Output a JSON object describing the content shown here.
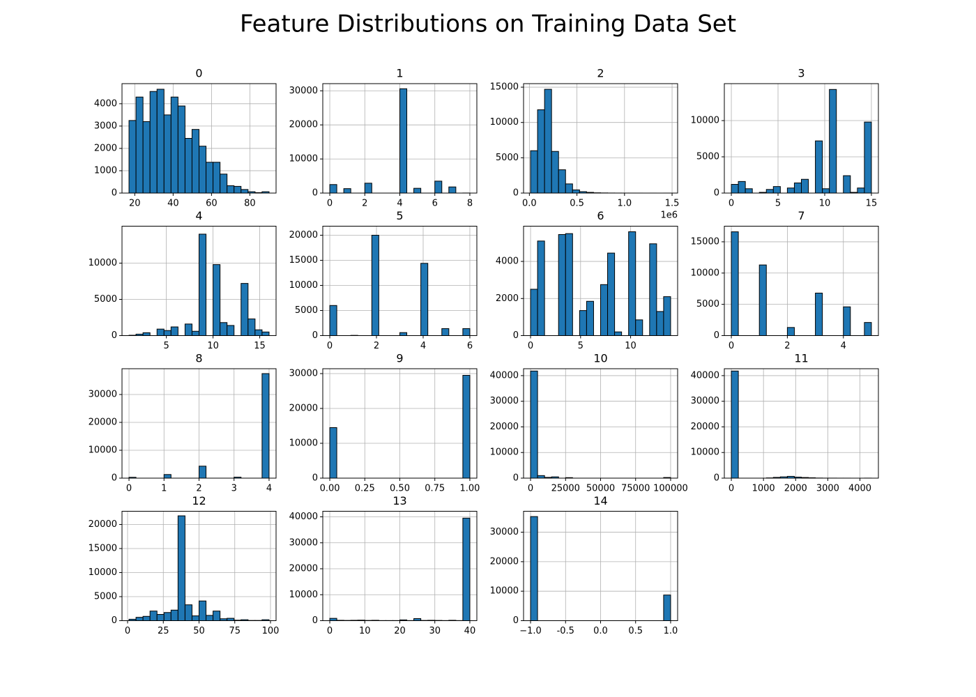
{
  "title": "Feature Distributions on Training Data Set",
  "chart_data": [
    {
      "type": "histogram",
      "title": "0",
      "color": "#1f77b4",
      "grid": true,
      "bins": [
        17,
        20.65,
        24.3,
        27.95,
        31.6,
        35.25,
        38.9,
        42.55,
        46.2,
        49.85,
        53.5,
        57.15,
        60.8,
        64.45,
        68.1,
        71.75,
        75.4,
        79.05,
        82.7,
        86.35,
        90
      ],
      "counts": [
        3250,
        4300,
        3200,
        4550,
        4650,
        3500,
        4300,
        3900,
        2450,
        2850,
        2100,
        1380,
        1380,
        850,
        330,
        300,
        160,
        60,
        20,
        60
      ],
      "xlim": [
        13.35,
        93.65
      ],
      "xticks": [
        20,
        40,
        60,
        80
      ],
      "ylim": [
        0,
        4900
      ],
      "yticks": [
        0,
        1000,
        2000,
        3000,
        4000
      ]
    },
    {
      "type": "histogram",
      "title": "1",
      "color": "#1f77b4",
      "grid": true,
      "bins": [
        0,
        0.4,
        0.8,
        1.2,
        1.6,
        2,
        2.4,
        2.8,
        3.2,
        3.6,
        4,
        4.4,
        4.8,
        5.2,
        5.6,
        6,
        6.4,
        6.8,
        7.2,
        7.6,
        8
      ],
      "counts": [
        2500,
        0,
        1300,
        0,
        0,
        2900,
        0,
        0,
        0,
        0,
        30600,
        0,
        1400,
        0,
        0,
        3500,
        0,
        1800,
        0,
        20
      ],
      "xlim": [
        -0.4,
        8.4
      ],
      "xticks": [
        0,
        2,
        4,
        6,
        8
      ],
      "ylim": [
        0,
        32100
      ],
      "yticks": [
        0,
        10000,
        20000,
        30000
      ]
    },
    {
      "type": "histogram",
      "title": "2",
      "color": "#1f77b4",
      "grid": true,
      "offset_label": "1e6",
      "bins": [
        0.0123,
        0.0859,
        0.1595,
        0.2331,
        0.3067,
        0.3803,
        0.4539,
        0.5275,
        0.6011,
        0.6747,
        0.7483,
        0.8219,
        0.8955,
        0.9691,
        1.0427,
        1.1163,
        1.1899,
        1.2635,
        1.3371,
        1.4107,
        1.4843
      ],
      "counts": [
        6000,
        11800,
        14700,
        5900,
        3300,
        1300,
        450,
        200,
        100,
        40,
        20,
        10,
        5,
        3,
        2,
        1,
        0,
        1,
        0,
        1
      ],
      "xlim": [
        -0.0613,
        1.5583
      ],
      "xticks": [
        {
          "value": 0,
          "label": "0.0"
        },
        0.5,
        {
          "value": 1,
          "label": "1.0"
        },
        1.5
      ],
      "ylim": [
        0,
        15500
      ],
      "yticks": [
        0,
        5000,
        10000,
        15000
      ]
    },
    {
      "type": "histogram",
      "title": "3",
      "color": "#1f77b4",
      "grid": true,
      "bins": [
        0,
        0.75,
        1.5,
        2.25,
        3,
        3.75,
        4.5,
        5.25,
        6,
        6.75,
        7.5,
        8.25,
        9,
        9.75,
        10.5,
        11.25,
        12,
        12.75,
        13.5,
        14.25,
        15
      ],
      "counts": [
        1200,
        1600,
        600,
        0,
        100,
        500,
        900,
        0,
        700,
        1400,
        1900,
        0,
        7200,
        600,
        14300,
        0,
        2400,
        100,
        700,
        9800
      ],
      "xlim": [
        -0.75,
        15.75
      ],
      "xticks": [
        0,
        5,
        10,
        15
      ],
      "ylim": [
        0,
        15100
      ],
      "yticks": [
        0,
        5000,
        10000
      ]
    },
    {
      "type": "histogram",
      "title": "4",
      "color": "#1f77b4",
      "grid": true,
      "bins": [
        1,
        1.75,
        2.5,
        3.25,
        4,
        4.75,
        5.5,
        6.25,
        7,
        7.75,
        8.5,
        9.25,
        10,
        10.75,
        11.5,
        12.25,
        13,
        13.75,
        14.5,
        15.25,
        16
      ],
      "counts": [
        50,
        200,
        400,
        0,
        900,
        700,
        1200,
        0,
        1600,
        600,
        14000,
        0,
        9800,
        1800,
        1400,
        0,
        7200,
        2300,
        800,
        500
      ],
      "xlim": [
        0.25,
        16.75
      ],
      "xticks": [
        5,
        10,
        15
      ],
      "ylim": [
        0,
        15100
      ],
      "yticks": [
        0,
        5000,
        10000
      ]
    },
    {
      "type": "histogram",
      "title": "5",
      "color": "#1f77b4",
      "grid": true,
      "bins": [
        0,
        0.3,
        0.6,
        0.9,
        1.2,
        1.5,
        1.8,
        2.1,
        2.4,
        2.7,
        3,
        3.3,
        3.6,
        3.9,
        4.2,
        4.5,
        4.8,
        5.1,
        5.4,
        5.7,
        6
      ],
      "counts": [
        6000,
        0,
        0,
        50,
        0,
        0,
        20000,
        0,
        0,
        0,
        600,
        0,
        0,
        14400,
        0,
        0,
        1400,
        0,
        0,
        1400
      ],
      "xlim": [
        -0.3,
        6.3
      ],
      "xticks": [
        0,
        2,
        4,
        6
      ],
      "ylim": [
        0,
        21800
      ],
      "yticks": [
        0,
        5000,
        10000,
        15000,
        20000
      ]
    },
    {
      "type": "histogram",
      "title": "6",
      "color": "#1f77b4",
      "grid": true,
      "bins": [
        0,
        0.7,
        1.4,
        2.1,
        2.8,
        3.5,
        4.2,
        4.9,
        5.6,
        6.3,
        7,
        7.7,
        8.4,
        9.1,
        9.8,
        10.5,
        11.2,
        11.9,
        12.6,
        13.3,
        14
      ],
      "counts": [
        2500,
        5100,
        0,
        0,
        5450,
        5500,
        0,
        1350,
        1850,
        0,
        2750,
        4450,
        200,
        0,
        5600,
        850,
        0,
        4950,
        1300,
        2100
      ],
      "xlim": [
        -0.7,
        14.7
      ],
      "xticks": [
        0,
        5,
        10
      ],
      "ylim": [
        0,
        5900
      ],
      "yticks": [
        0,
        2000,
        4000
      ]
    },
    {
      "type": "histogram",
      "title": "7",
      "color": "#1f77b4",
      "grid": true,
      "bins": [
        0,
        0.25,
        0.5,
        0.75,
        1,
        1.25,
        1.5,
        1.75,
        2,
        2.25,
        2.5,
        2.75,
        3,
        3.25,
        3.5,
        3.75,
        4,
        4.25,
        4.5,
        4.75,
        5
      ],
      "counts": [
        16600,
        0,
        0,
        0,
        11300,
        0,
        0,
        0,
        1300,
        0,
        0,
        0,
        6800,
        0,
        0,
        0,
        4600,
        0,
        0,
        2100
      ],
      "xlim": [
        -0.25,
        5.25
      ],
      "xticks": [
        0,
        2,
        4
      ],
      "ylim": [
        0,
        17500
      ],
      "yticks": [
        0,
        5000,
        10000,
        15000
      ]
    },
    {
      "type": "histogram",
      "title": "8",
      "color": "#1f77b4",
      "grid": true,
      "bins": [
        0,
        0.2,
        0.4,
        0.6,
        0.8,
        1,
        1.2,
        1.4,
        1.6,
        1.8,
        2,
        2.2,
        2.4,
        2.6,
        2.8,
        3,
        3.2,
        3.4,
        3.6,
        3.8,
        4
      ],
      "counts": [
        300,
        0,
        0,
        0,
        0,
        1300,
        0,
        0,
        0,
        0,
        4300,
        0,
        0,
        0,
        0,
        350,
        0,
        0,
        0,
        37500
      ],
      "xlim": [
        -0.2,
        4.2
      ],
      "xticks": [
        0,
        1,
        2,
        3,
        4
      ],
      "ylim": [
        0,
        39250
      ],
      "yticks": [
        0,
        10000,
        20000,
        30000
      ]
    },
    {
      "type": "histogram",
      "title": "9",
      "color": "#1f77b4",
      "grid": true,
      "bins": [
        0,
        0.05,
        0.1,
        0.15,
        0.2,
        0.25,
        0.3,
        0.35,
        0.4,
        0.45,
        0.5,
        0.55,
        0.6,
        0.65,
        0.7,
        0.75,
        0.8,
        0.85,
        0.9,
        0.95,
        1
      ],
      "counts": [
        14500,
        0,
        0,
        0,
        0,
        0,
        0,
        0,
        0,
        0,
        0,
        0,
        0,
        0,
        0,
        0,
        0,
        0,
        0,
        29500
      ],
      "xlim": [
        -0.05,
        1.05
      ],
      "xticks": [
        {
          "value": 0,
          "label": "0.00"
        },
        0.25,
        {
          "value": 0.5,
          "label": "0.50"
        },
        0.75,
        {
          "value": 1,
          "label": "1.00"
        }
      ],
      "ylim": [
        0,
        31400
      ],
      "yticks": [
        0,
        10000,
        20000,
        30000
      ]
    },
    {
      "type": "histogram",
      "title": "10",
      "color": "#1f77b4",
      "grid": true,
      "bins": [
        0,
        5000,
        10000,
        15000,
        20000,
        25000,
        30000,
        35000,
        40000,
        45000,
        50000,
        55000,
        60000,
        65000,
        70000,
        75000,
        80000,
        85000,
        90000,
        95000,
        100000
      ],
      "counts": [
        41800,
        1000,
        300,
        500,
        0,
        200,
        0,
        0,
        0,
        0,
        0,
        0,
        0,
        0,
        0,
        0,
        0,
        0,
        0,
        250
      ],
      "xlim": [
        -5000,
        105000
      ],
      "xticks": [
        0,
        25000,
        50000,
        75000,
        100000
      ],
      "ylim": [
        0,
        42700
      ],
      "yticks": [
        0,
        10000,
        20000,
        30000,
        40000
      ]
    },
    {
      "type": "histogram",
      "title": "11",
      "color": "#1f77b4",
      "grid": true,
      "bins": [
        0,
        217.8,
        435.6,
        653.4,
        871.2,
        1089,
        1306.8,
        1524.6,
        1742.4,
        1960.2,
        2178,
        2395.8,
        2613.6,
        2831.4,
        3049.2,
        3267,
        3484.8,
        3702.6,
        3920.4,
        4138.2,
        4356
      ],
      "counts": [
        41800,
        0,
        0,
        0,
        0,
        100,
        300,
        500,
        700,
        400,
        250,
        150,
        50,
        20,
        20,
        10,
        10,
        0,
        0,
        20
      ],
      "xlim": [
        -217.8,
        4573.8
      ],
      "xticks": [
        0,
        1000,
        2000,
        3000,
        4000
      ],
      "ylim": [
        0,
        42700
      ],
      "yticks": [
        0,
        10000,
        20000,
        30000,
        40000
      ]
    },
    {
      "type": "histogram",
      "title": "12",
      "color": "#1f77b4",
      "grid": true,
      "bins": [
        1,
        5.9,
        10.8,
        15.7,
        20.6,
        25.5,
        30.4,
        35.3,
        40.2,
        45.1,
        50,
        54.9,
        59.8,
        64.7,
        69.6,
        74.5,
        79.4,
        84.3,
        89.2,
        94.1,
        99
      ],
      "counts": [
        300,
        700,
        900,
        2000,
        1300,
        1700,
        2200,
        21800,
        3300,
        1000,
        4100,
        1100,
        2000,
        400,
        500,
        100,
        200,
        50,
        50,
        200
      ],
      "xlim": [
        -3.9,
        103.9
      ],
      "xticks": [
        0,
        25,
        50,
        75,
        100
      ],
      "ylim": [
        0,
        22750
      ],
      "yticks": [
        0,
        5000,
        10000,
        15000,
        20000
      ]
    },
    {
      "type": "histogram",
      "title": "13",
      "color": "#1f77b4",
      "grid": true,
      "bins": [
        0,
        2,
        4,
        6,
        8,
        10,
        12,
        14,
        16,
        18,
        20,
        22,
        24,
        26,
        28,
        30,
        32,
        34,
        36,
        38,
        40
      ],
      "counts": [
        900,
        150,
        100,
        150,
        200,
        100,
        150,
        50,
        50,
        50,
        300,
        50,
        800,
        100,
        150,
        100,
        50,
        150,
        50,
        39500
      ],
      "xlim": [
        -2,
        42
      ],
      "xticks": [
        0,
        10,
        20,
        30,
        40
      ],
      "ylim": [
        0,
        42150
      ],
      "yticks": [
        0,
        10000,
        20000,
        30000,
        40000
      ]
    },
    {
      "type": "histogram",
      "title": "14",
      "color": "#1f77b4",
      "grid": true,
      "bins": [
        -1,
        -0.9,
        -0.8,
        -0.7,
        -0.6,
        -0.5,
        -0.4,
        -0.3,
        -0.2,
        -0.1,
        0,
        0.1,
        0.2,
        0.3,
        0.4,
        0.5,
        0.6,
        0.7,
        0.8,
        0.9,
        1
      ],
      "counts": [
        35300,
        0,
        0,
        0,
        0,
        0,
        0,
        0,
        0,
        0,
        0,
        0,
        0,
        0,
        0,
        0,
        0,
        0,
        0,
        8700
      ],
      "xlim": [
        -1.1,
        1.1
      ],
      "xticks": [
        {
          "value": -1,
          "label": "−1.0"
        },
        -0.5,
        {
          "value": 0,
          "label": "0.0"
        },
        0.5,
        {
          "value": 1,
          "label": "1.0"
        }
      ],
      "ylim": [
        0,
        37100
      ],
      "yticks": [
        0,
        10000,
        20000,
        30000
      ]
    }
  ]
}
